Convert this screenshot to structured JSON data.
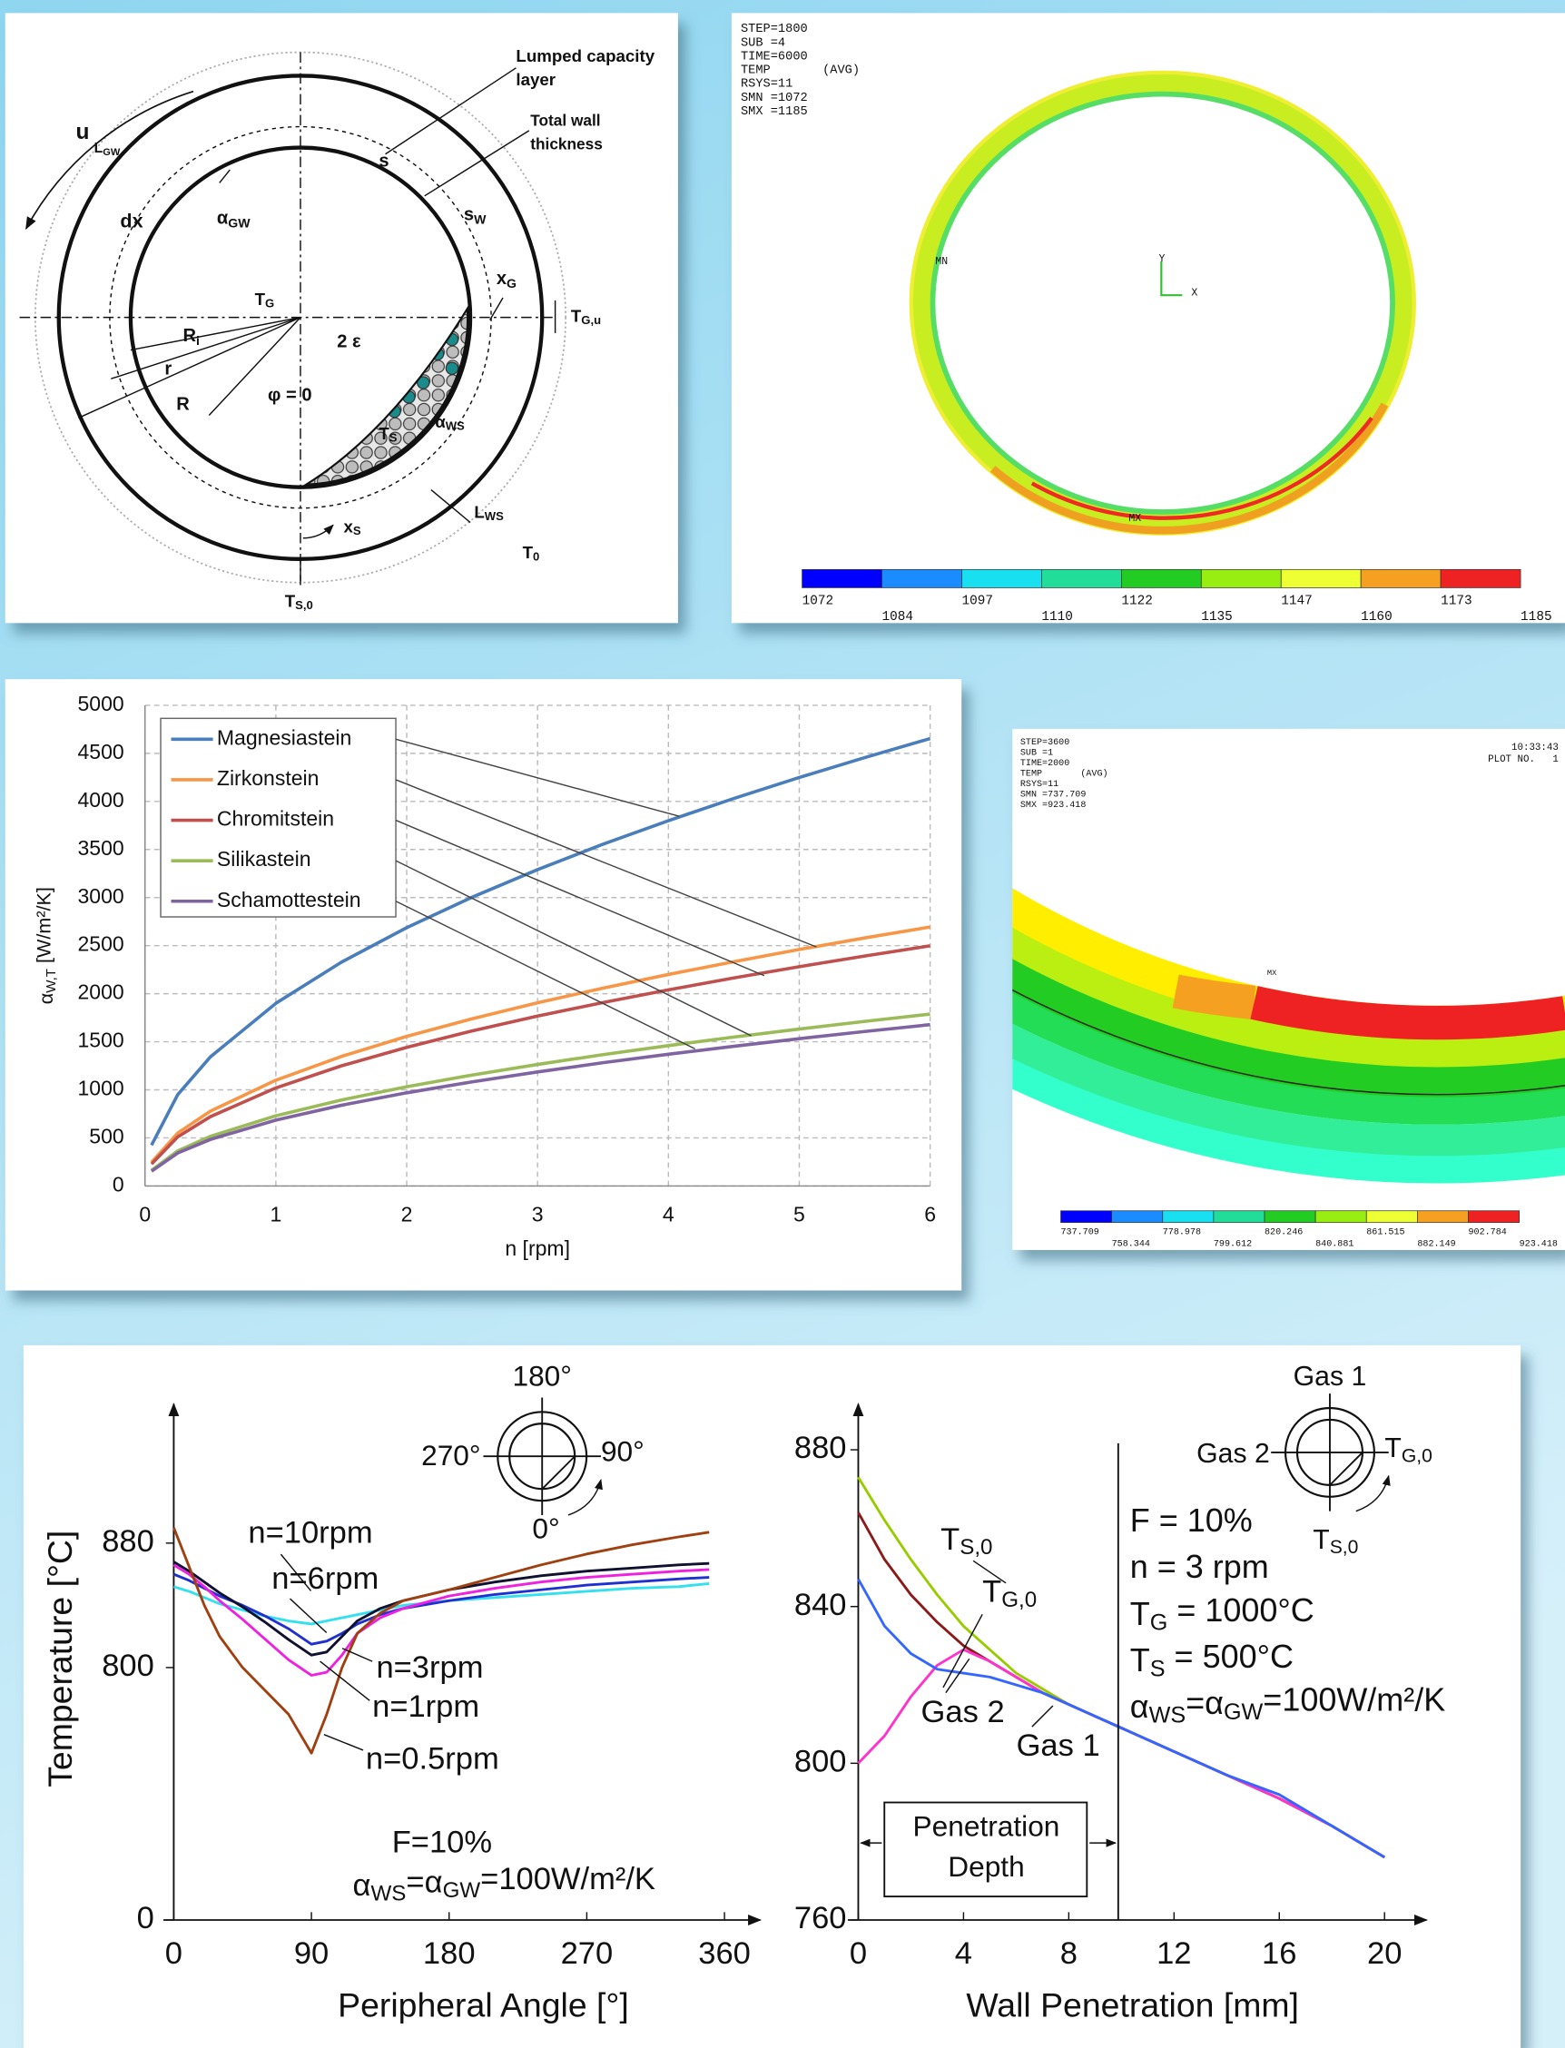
{
  "chart_data": [
    {
      "type": "line",
      "y_label": [
        {
          "text": "α"
        },
        {
          "sub": "W,T"
        },
        {
          "text": " [W/m²/K]"
        }
      ],
      "x_label": "n [rpm]",
      "x": [
        0.05,
        0.25,
        0.5,
        1,
        1.5,
        2,
        2.5,
        3,
        3.5,
        4,
        4.5,
        5,
        5.5,
        6
      ],
      "series": [
        {
          "name": "Magnesiastein",
          "color": "#4a7ebb",
          "values": [
            425,
            950,
            1343,
            1900,
            2327,
            2687,
            3004,
            3291,
            3555,
            3800,
            4031,
            4249,
            4456,
            4654
          ]
        },
        {
          "name": "Zirkonstein",
          "color": "#f79646",
          "values": [
            246,
            550,
            778,
            1100,
            1347,
            1556,
            1739,
            1905,
            2058,
            2200,
            2333,
            2460,
            2580,
            2694
          ]
        },
        {
          "name": "Chromitstein",
          "color": "#c0504d",
          "values": [
            228,
            510,
            721,
            1020,
            1249,
            1442,
            1613,
            1767,
            1908,
            2040,
            2164,
            2281,
            2392,
            2498
          ]
        },
        {
          "name": "Silikastein",
          "color": "#9bbb59",
          "values": [
            163,
            365,
            516,
            730,
            894,
            1032,
            1154,
            1264,
            1366,
            1460,
            1549,
            1632,
            1712,
            1788
          ]
        },
        {
          "name": "Schamottestein",
          "color": "#8064a2",
          "values": [
            153,
            343,
            484,
            685,
            839,
            969,
            1083,
            1186,
            1282,
            1370,
            1453,
            1532,
            1607,
            1678
          ]
        }
      ],
      "xlim": [
        0,
        6
      ],
      "xticks": [
        0,
        1,
        2,
        3,
        4,
        5,
        6
      ],
      "ylim": [
        0,
        5000
      ],
      "yticks": [
        0,
        500,
        1000,
        1500,
        2000,
        2500,
        3000,
        3500,
        4000,
        4500,
        5000
      ],
      "grid": true,
      "legend": "upper left"
    },
    {
      "type": "line",
      "y_label": "Temperature [°C]",
      "x_label": "Peripheral Angle [°]",
      "x": [
        0,
        10,
        20,
        30,
        45,
        60,
        75,
        90,
        100,
        110,
        120,
        135,
        150,
        180,
        210,
        240,
        270,
        300,
        330,
        350
      ],
      "series": [
        {
          "name": "n=10rpm",
          "color": "#33e0f0",
          "values": [
            852,
            849,
            845,
            841,
            837,
            833,
            830,
            828,
            830,
            832,
            834,
            837,
            840,
            843,
            845,
            847,
            849,
            851,
            852,
            854
          ]
        },
        {
          "name": "n=6rpm",
          "color": "#2030d0",
          "values": [
            860,
            856,
            851,
            846,
            840,
            833,
            825,
            815,
            817,
            822,
            828,
            834,
            838,
            843,
            847,
            850,
            853,
            855,
            857,
            858
          ]
        },
        {
          "name": "n=3rpm",
          "color": "#101030",
          "values": [
            868,
            862,
            855,
            848,
            839,
            829,
            818,
            808,
            810,
            820,
            830,
            838,
            843,
            850,
            855,
            859,
            862,
            864,
            866,
            867
          ]
        },
        {
          "name": "n=1rpm",
          "color": "#f020e0",
          "values": [
            866,
            860,
            852,
            843,
            831,
            818,
            805,
            795,
            797,
            808,
            822,
            832,
            838,
            846,
            851,
            855,
            858,
            860,
            862,
            863
          ]
        },
        {
          "name": "n=0.5rpm",
          "color": "#a04010",
          "values": [
            890,
            865,
            840,
            820,
            800,
            785,
            770,
            745,
            770,
            800,
            822,
            835,
            843,
            850,
            858,
            866,
            873,
            879,
            884,
            887
          ]
        }
      ],
      "xlim": [
        0,
        380
      ],
      "xticks": [
        0,
        90,
        180,
        270,
        360
      ],
      "ylim": [
        0,
        940
      ],
      "y_break": [
        0,
        720
      ],
      "yticks": [
        0,
        800,
        880
      ],
      "annotations": [
        "F=10%",
        [
          {
            "text": "α"
          },
          {
            "sub": "WS"
          },
          {
            "text": "=α"
          },
          {
            "sub": "GW"
          },
          {
            "text": "=100W/m²/K"
          }
        ]
      ],
      "inset_labels": [
        "180°",
        "270°",
        "90°",
        "0°"
      ]
    },
    {
      "type": "line",
      "x_label": "Wall Penetration [mm]",
      "x": [
        0,
        1,
        2,
        3,
        4,
        5,
        6,
        7,
        8,
        9,
        10,
        12,
        14,
        16,
        18,
        20
      ],
      "series": [
        {
          "name": [
            {
              "text": "T"
            },
            {
              "sub": "S,0"
            }
          ],
          "color": "#99cc00",
          "values": [
            873,
            862,
            852,
            843,
            835,
            829,
            823,
            819,
            815,
            812,
            809,
            803,
            797,
            791,
            784,
            776
          ]
        },
        {
          "name": [
            {
              "text": "T"
            },
            {
              "sub": "G,0"
            }
          ],
          "color": "#8b1a1a",
          "values": [
            864,
            852,
            843,
            836,
            830,
            826,
            822,
            818,
            815,
            812,
            809,
            803,
            797,
            791,
            784,
            776
          ]
        },
        {
          "name": "Gas 2",
          "color": "#ff33cc",
          "values": [
            800,
            807,
            817,
            825,
            829,
            826,
            822,
            818,
            815,
            812,
            809,
            803,
            797,
            791,
            784,
            776
          ]
        },
        {
          "name": "Gas 1",
          "color": "#3366ff",
          "values": [
            847,
            835,
            828,
            824,
            823,
            822,
            820,
            818,
            815,
            812,
            809,
            803,
            797,
            792,
            784,
            776
          ]
        }
      ],
      "xlim": [
        0,
        21
      ],
      "xticks": [
        0,
        4,
        8,
        12,
        16,
        20
      ],
      "ylim": [
        760,
        890
      ],
      "yticks": [
        760,
        800,
        840,
        880
      ],
      "annotations": [
        "F = 10%",
        "n = 3 rpm",
        [
          {
            "text": "T"
          },
          {
            "sub": "G"
          },
          {
            "text": " = 1000°C"
          }
        ],
        [
          {
            "text": "T"
          },
          {
            "sub": "S"
          },
          {
            "text": " = 500°C"
          }
        ],
        [
          {
            "text": "α"
          },
          {
            "sub": "WS"
          },
          {
            "text": "=α"
          },
          {
            "sub": "GW"
          },
          {
            "text": "=100W/m²/K"
          }
        ]
      ],
      "penetration_label": [
        "Penetration",
        "Depth"
      ],
      "inset_labels": [
        "Gas 1",
        "Gas 2",
        [
          {
            "text": "T"
          },
          {
            "sub": "G,0"
          }
        ],
        [
          {
            "text": "T"
          },
          {
            "sub": "S,0"
          }
        ]
      ]
    }
  ],
  "diagram": {
    "labels": [
      [
        "Lumped capacity",
        "layer"
      ],
      [
        "Total wall",
        "thickness"
      ],
      "u",
      [
        {
          "text": "L"
        },
        {
          "sub": "GW"
        }
      ],
      "dx",
      [
        {
          "text": "α"
        },
        {
          "sub": "GW"
        }
      ],
      "s",
      [
        {
          "text": "s"
        },
        {
          "sub": "W"
        }
      ],
      [
        {
          "text": "x"
        },
        {
          "sub": "G"
        }
      ],
      [
        {
          "text": "T"
        },
        {
          "sub": "G"
        }
      ],
      [
        {
          "text": "T"
        },
        {
          "sub": "G,u"
        }
      ],
      [
        {
          "text": "R"
        },
        {
          "sub": "i"
        }
      ],
      "r",
      "R",
      "2 ε",
      "φ = 0",
      [
        {
          "text": "T"
        },
        {
          "sub": "S"
        }
      ],
      [
        {
          "text": "α"
        },
        {
          "sub": "WS"
        }
      ],
      [
        {
          "text": "x"
        },
        {
          "sub": "S"
        }
      ],
      [
        {
          "text": "L"
        },
        {
          "sub": "WS"
        }
      ],
      [
        {
          "text": "T"
        },
        {
          "sub": "0"
        }
      ],
      [
        {
          "text": "T"
        },
        {
          "sub": "S,0"
        }
      ]
    ]
  },
  "fem_plots": [
    {
      "header": [
        "STEP=1800",
        "SUB =4",
        "TIME=6000",
        "TEMP       (AVG)",
        "RSYS=11",
        "SMN =1072",
        "SMX =1185"
      ],
      "markers": [
        "MN",
        "MX"
      ],
      "axis_labels": [
        "Y",
        "X"
      ],
      "colorbar_labels": [
        "1072",
        "1084",
        "1097",
        "1110",
        "1122",
        "1135",
        "1147",
        "1160",
        "1173",
        "1185"
      ]
    },
    {
      "header": [
        "STEP=3600",
        "SUB =1",
        "TIME=2000",
        "TEMP       (AVG)",
        "RSYS=11",
        "SMN =737.709",
        "SMX =923.418"
      ],
      "stamp": [
        "10:33:43",
        "PLOT NO.   1"
      ],
      "markers": [
        "MX"
      ],
      "colorbar_labels": [
        "737.709",
        "758.344",
        "778.978",
        "799.612",
        "820.246",
        "840.881",
        "861.515",
        "882.149",
        "902.784",
        "923.418"
      ]
    }
  ]
}
